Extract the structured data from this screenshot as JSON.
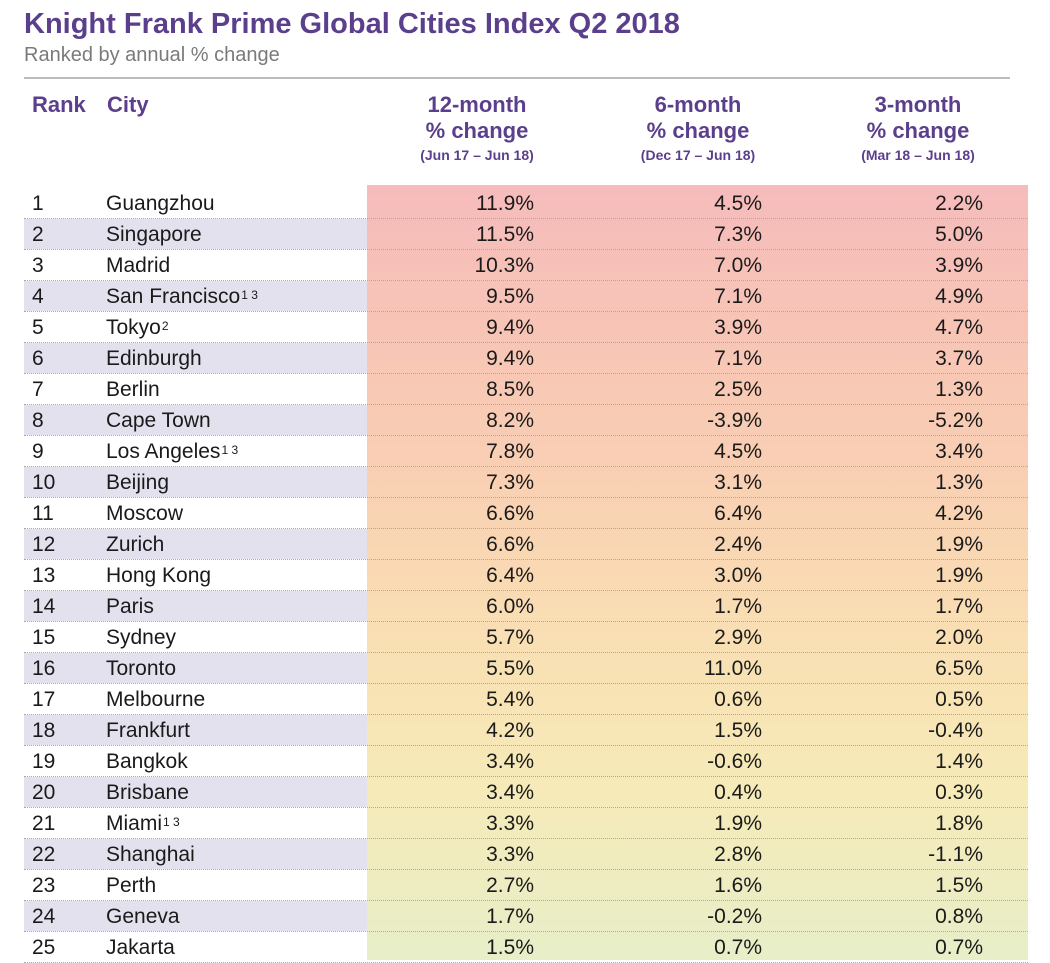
{
  "chart_data": {
    "type": "table",
    "title": "Knight Frank Prime Global Cities Index Q2 2018",
    "subtitle": "Ranked by annual % change",
    "columns": {
      "rank": "Rank",
      "city": "City",
      "m12": {
        "label": "12-month",
        "label2": "% change",
        "period": "(Jun 17 – Jun 18)"
      },
      "m6": {
        "label": "6-month",
        "label2": "% change",
        "period": "(Dec 17 – Jun 18)"
      },
      "m3": {
        "label": "3-month",
        "label2": "% change",
        "period": "(Mar 18 – Jun 18)"
      }
    },
    "heat_colors": {
      "top": "#f6bcbc",
      "bottom": "#e7eec8"
    },
    "rows": [
      {
        "rank": "1",
        "city": "Guangzhou",
        "note": "",
        "m12": "11.9%",
        "m6": "4.5%",
        "m3": "2.2%"
      },
      {
        "rank": "2",
        "city": "Singapore",
        "note": "",
        "m12": "11.5%",
        "m6": "7.3%",
        "m3": "5.0%"
      },
      {
        "rank": "3",
        "city": "Madrid",
        "note": "",
        "m12": "10.3%",
        "m6": "7.0%",
        "m3": "3.9%"
      },
      {
        "rank": "4",
        "city": "San Francisco",
        "note": "1 3",
        "m12": "9.5%",
        "m6": "7.1%",
        "m3": "4.9%"
      },
      {
        "rank": "5",
        "city": "Tokyo",
        "note": "2",
        "m12": "9.4%",
        "m6": "3.9%",
        "m3": "4.7%"
      },
      {
        "rank": "6",
        "city": "Edinburgh",
        "note": "",
        "m12": "9.4%",
        "m6": "7.1%",
        "m3": "3.7%"
      },
      {
        "rank": "7",
        "city": "Berlin",
        "note": "",
        "m12": "8.5%",
        "m6": "2.5%",
        "m3": "1.3%"
      },
      {
        "rank": "8",
        "city": "Cape Town",
        "note": "",
        "m12": "8.2%",
        "m6": "-3.9%",
        "m3": "-5.2%"
      },
      {
        "rank": "9",
        "city": "Los Angeles",
        "note": "1 3",
        "m12": "7.8%",
        "m6": "4.5%",
        "m3": "3.4%"
      },
      {
        "rank": "10",
        "city": "Beijing",
        "note": "",
        "m12": "7.3%",
        "m6": "3.1%",
        "m3": "1.3%"
      },
      {
        "rank": "11",
        "city": "Moscow",
        "note": "",
        "m12": "6.6%",
        "m6": "6.4%",
        "m3": "4.2%"
      },
      {
        "rank": "12",
        "city": "Zurich",
        "note": "",
        "m12": "6.6%",
        "m6": "2.4%",
        "m3": "1.9%"
      },
      {
        "rank": "13",
        "city": "Hong Kong",
        "note": "",
        "m12": "6.4%",
        "m6": "3.0%",
        "m3": "1.9%"
      },
      {
        "rank": "14",
        "city": "Paris",
        "note": "",
        "m12": "6.0%",
        "m6": "1.7%",
        "m3": "1.7%"
      },
      {
        "rank": "15",
        "city": "Sydney",
        "note": "",
        "m12": "5.7%",
        "m6": "2.9%",
        "m3": "2.0%"
      },
      {
        "rank": "16",
        "city": "Toronto",
        "note": "",
        "m12": "5.5%",
        "m6": "11.0%",
        "m3": "6.5%"
      },
      {
        "rank": "17",
        "city": "Melbourne",
        "note": "",
        "m12": "5.4%",
        "m6": "0.6%",
        "m3": "0.5%"
      },
      {
        "rank": "18",
        "city": "Frankfurt",
        "note": "",
        "m12": "4.2%",
        "m6": "1.5%",
        "m3": "-0.4%"
      },
      {
        "rank": "19",
        "city": "Bangkok",
        "note": "",
        "m12": "3.4%",
        "m6": "-0.6%",
        "m3": "1.4%"
      },
      {
        "rank": "20",
        "city": "Brisbane",
        "note": "",
        "m12": "3.4%",
        "m6": "0.4%",
        "m3": "0.3%"
      },
      {
        "rank": "21",
        "city": "Miami",
        "note": "1 3",
        "m12": "3.3%",
        "m6": "1.9%",
        "m3": "1.8%"
      },
      {
        "rank": "22",
        "city": "Shanghai",
        "note": "",
        "m12": "3.3%",
        "m6": "2.8%",
        "m3": "-1.1%"
      },
      {
        "rank": "23",
        "city": "Perth",
        "note": "",
        "m12": "2.7%",
        "m6": "1.6%",
        "m3": "1.5%"
      },
      {
        "rank": "24",
        "city": "Geneva",
        "note": "",
        "m12": "1.7%",
        "m6": "-0.2%",
        "m3": "0.8%"
      },
      {
        "rank": "25",
        "city": "Jakarta",
        "note": "",
        "m12": "1.5%",
        "m6": "0.7%",
        "m3": "0.7%"
      }
    ]
  }
}
